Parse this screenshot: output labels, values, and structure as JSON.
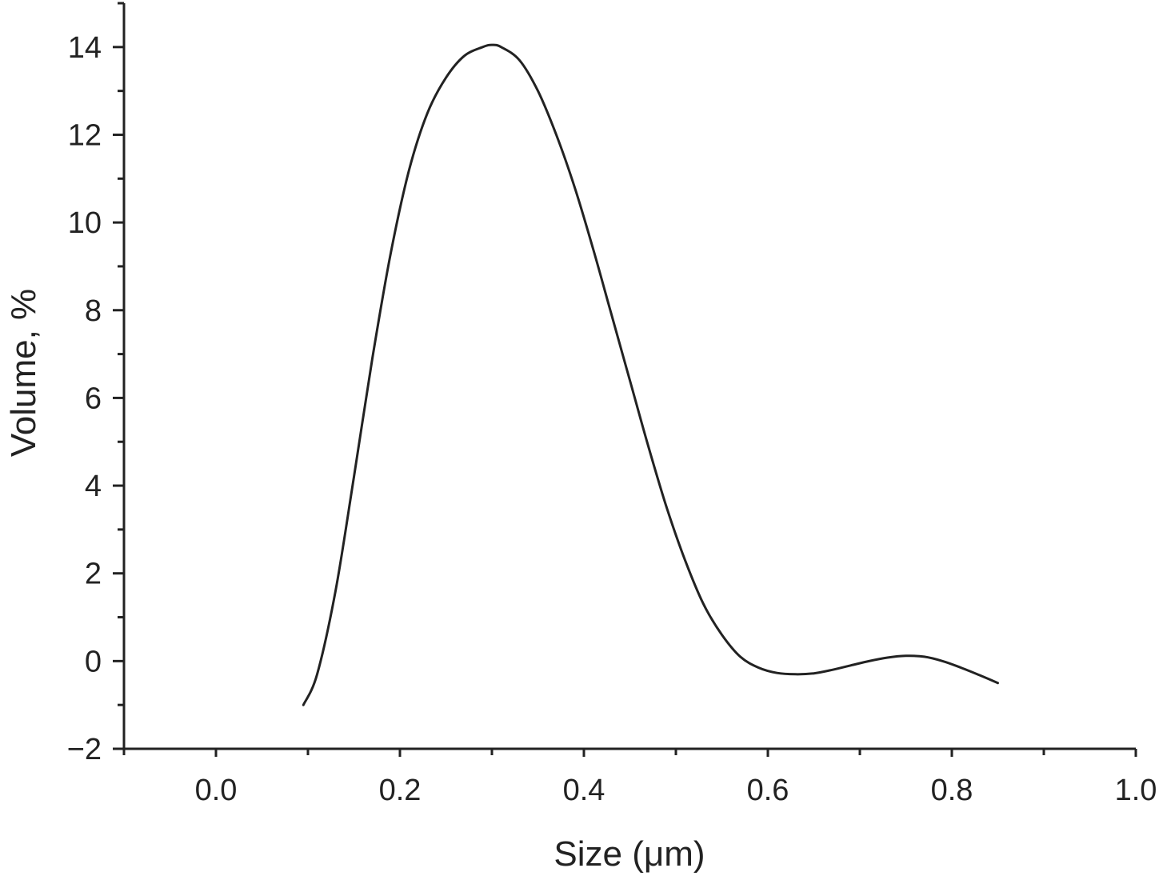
{
  "chart_data": {
    "type": "line",
    "title": "",
    "xlabel": "Size (μm)",
    "ylabel": "Volume, %",
    "xlim": [
      -0.1,
      1.0
    ],
    "ylim": [
      -2,
      15
    ],
    "x_ticks": [
      0.0,
      0.2,
      0.4,
      0.6,
      0.8,
      1.0
    ],
    "x_tick_labels": [
      "0.0",
      "0.2",
      "0.4",
      "0.6",
      "0.8",
      "1.0"
    ],
    "y_ticks": [
      -2,
      0,
      2,
      4,
      6,
      8,
      10,
      12,
      14
    ],
    "y_tick_labels": [
      "−2",
      "0",
      "2",
      "4",
      "6",
      "8",
      "10",
      "12",
      "14"
    ],
    "grid": false,
    "legend": "none",
    "line_color": "#222222",
    "series": [
      {
        "x": [
          0.095,
          0.11,
          0.13,
          0.15,
          0.17,
          0.19,
          0.21,
          0.23,
          0.25,
          0.27,
          0.29,
          0.3,
          0.31,
          0.33,
          0.35,
          0.37,
          0.39,
          0.41,
          0.43,
          0.45,
          0.47,
          0.49,
          0.51,
          0.53,
          0.55,
          0.57,
          0.59,
          0.61,
          0.63,
          0.65,
          0.67,
          0.69,
          0.71,
          0.73,
          0.75,
          0.77,
          0.79,
          0.81,
          0.83,
          0.85
        ],
        "y": [
          -1.0,
          -0.3,
          1.6,
          4.2,
          6.9,
          9.3,
          11.2,
          12.5,
          13.3,
          13.8,
          14.0,
          14.05,
          14.0,
          13.7,
          13.0,
          12.0,
          10.8,
          9.4,
          7.9,
          6.4,
          4.9,
          3.5,
          2.3,
          1.3,
          0.6,
          0.1,
          -0.15,
          -0.27,
          -0.3,
          -0.28,
          -0.2,
          -0.1,
          0.0,
          0.08,
          0.12,
          0.1,
          0.0,
          -0.15,
          -0.32,
          -0.5
        ]
      }
    ]
  }
}
